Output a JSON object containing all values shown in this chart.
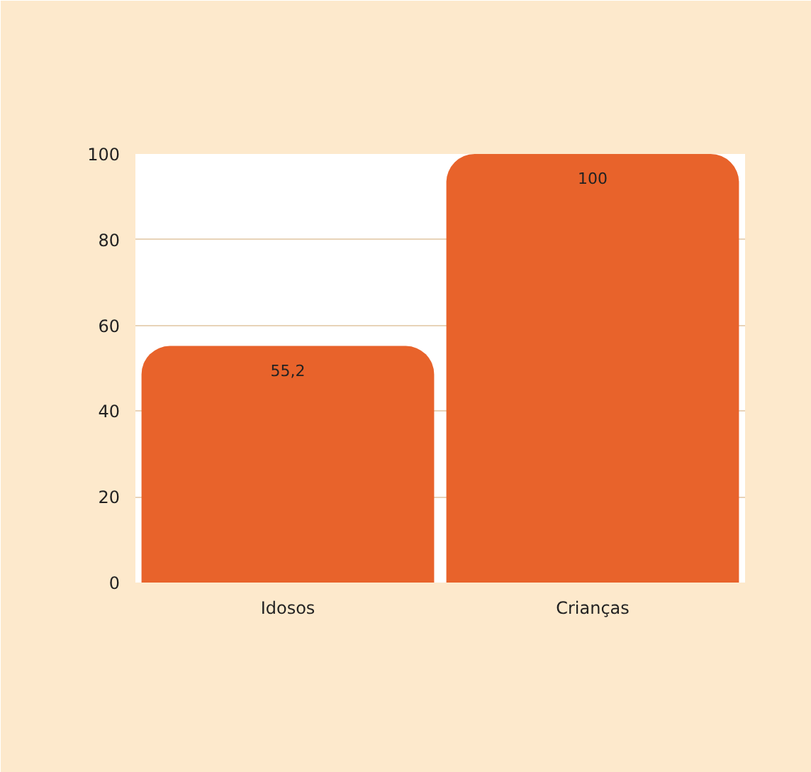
{
  "chart_data": {
    "type": "bar",
    "categories": [
      "Idosos",
      "Crianças"
    ],
    "values": [
      55.2,
      100
    ],
    "color": "#e8632b",
    "value_labels": [
      "55,2",
      "100"
    ],
    "ylim": [
      0,
      100
    ],
    "yticks": [
      0,
      20,
      40,
      60,
      80,
      100
    ],
    "grid": "y"
  }
}
